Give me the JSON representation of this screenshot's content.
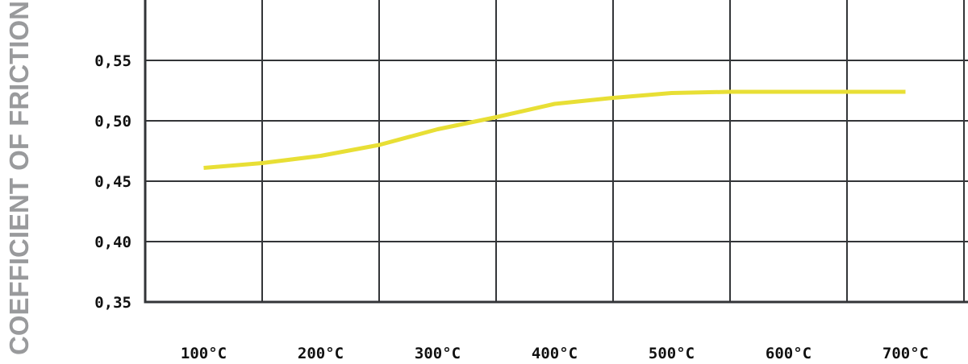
{
  "chart_data": {
    "type": "line",
    "title": "",
    "xlabel": "",
    "ylabel": "COEFFICIENT OF FRICTION",
    "x_tick_labels": [
      "100°C",
      "200°C",
      "300°C",
      "400°C",
      "500°C",
      "600°C",
      "700°C"
    ],
    "x_tick_values": [
      100,
      200,
      300,
      400,
      500,
      600,
      700
    ],
    "y_tick_labels": [
      "0,35",
      "0,40",
      "0,45",
      "0,50",
      "0,55"
    ],
    "y_tick_values": [
      0.35,
      0.4,
      0.45,
      0.5,
      0.55
    ],
    "xlim": [
      50,
      750
    ],
    "ylim": [
      0.35,
      0.6
    ],
    "grid": true,
    "legend": "none",
    "series": [
      {
        "x": [
          100,
          150,
          200,
          250,
          300,
          350,
          400,
          450,
          500,
          550,
          600,
          650,
          700
        ],
        "y": [
          0.461,
          0.465,
          0.471,
          0.48,
          0.493,
          0.503,
          0.514,
          0.519,
          0.523,
          0.524,
          0.524,
          0.524,
          0.524
        ],
        "color": "#e8df35"
      }
    ],
    "colors": {
      "grid": "#333538",
      "axis": "#333538",
      "ylabel": "#999a9c"
    }
  }
}
